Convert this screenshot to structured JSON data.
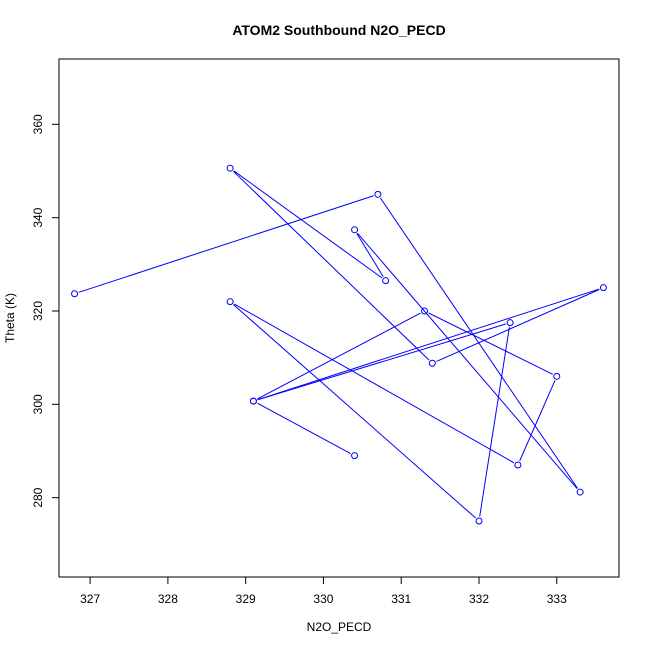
{
  "chart_data": {
    "type": "line",
    "title": "ATOM2 Southbound N2O_PECD",
    "xlabel": "N2O_PECD",
    "ylabel": "Theta (K)",
    "xlim": [
      326.6,
      333.8
    ],
    "ylim": [
      263,
      374
    ],
    "xticks": [
      327,
      328,
      329,
      330,
      331,
      332,
      333
    ],
    "yticks": [
      280,
      300,
      320,
      340,
      360
    ],
    "grid": false,
    "markers": "open-circle",
    "series": [
      {
        "color": "#0000ff",
        "points": [
          {
            "x": 330.4,
            "y": 289.0
          },
          {
            "x": 329.1,
            "y": 300.7
          },
          {
            "x": 331.3,
            "y": 320.0
          },
          {
            "x": 333.0,
            "y": 306.0
          },
          {
            "x": 332.5,
            "y": 287.0
          },
          {
            "x": 328.8,
            "y": 322.0
          },
          {
            "x": 332.0,
            "y": 275.0
          },
          {
            "x": 332.4,
            "y": 317.5
          },
          {
            "x": 329.1,
            "y": 300.7
          },
          {
            "x": 333.6,
            "y": 325.0
          },
          {
            "x": 331.4,
            "y": 308.8
          },
          {
            "x": 328.8,
            "y": 350.6
          },
          {
            "x": 330.8,
            "y": 326.5
          },
          {
            "x": 330.4,
            "y": 337.4
          },
          {
            "x": 333.3,
            "y": 281.2
          },
          {
            "x": 330.7,
            "y": 345.0
          },
          {
            "x": 326.8,
            "y": 323.7
          }
        ]
      }
    ]
  }
}
